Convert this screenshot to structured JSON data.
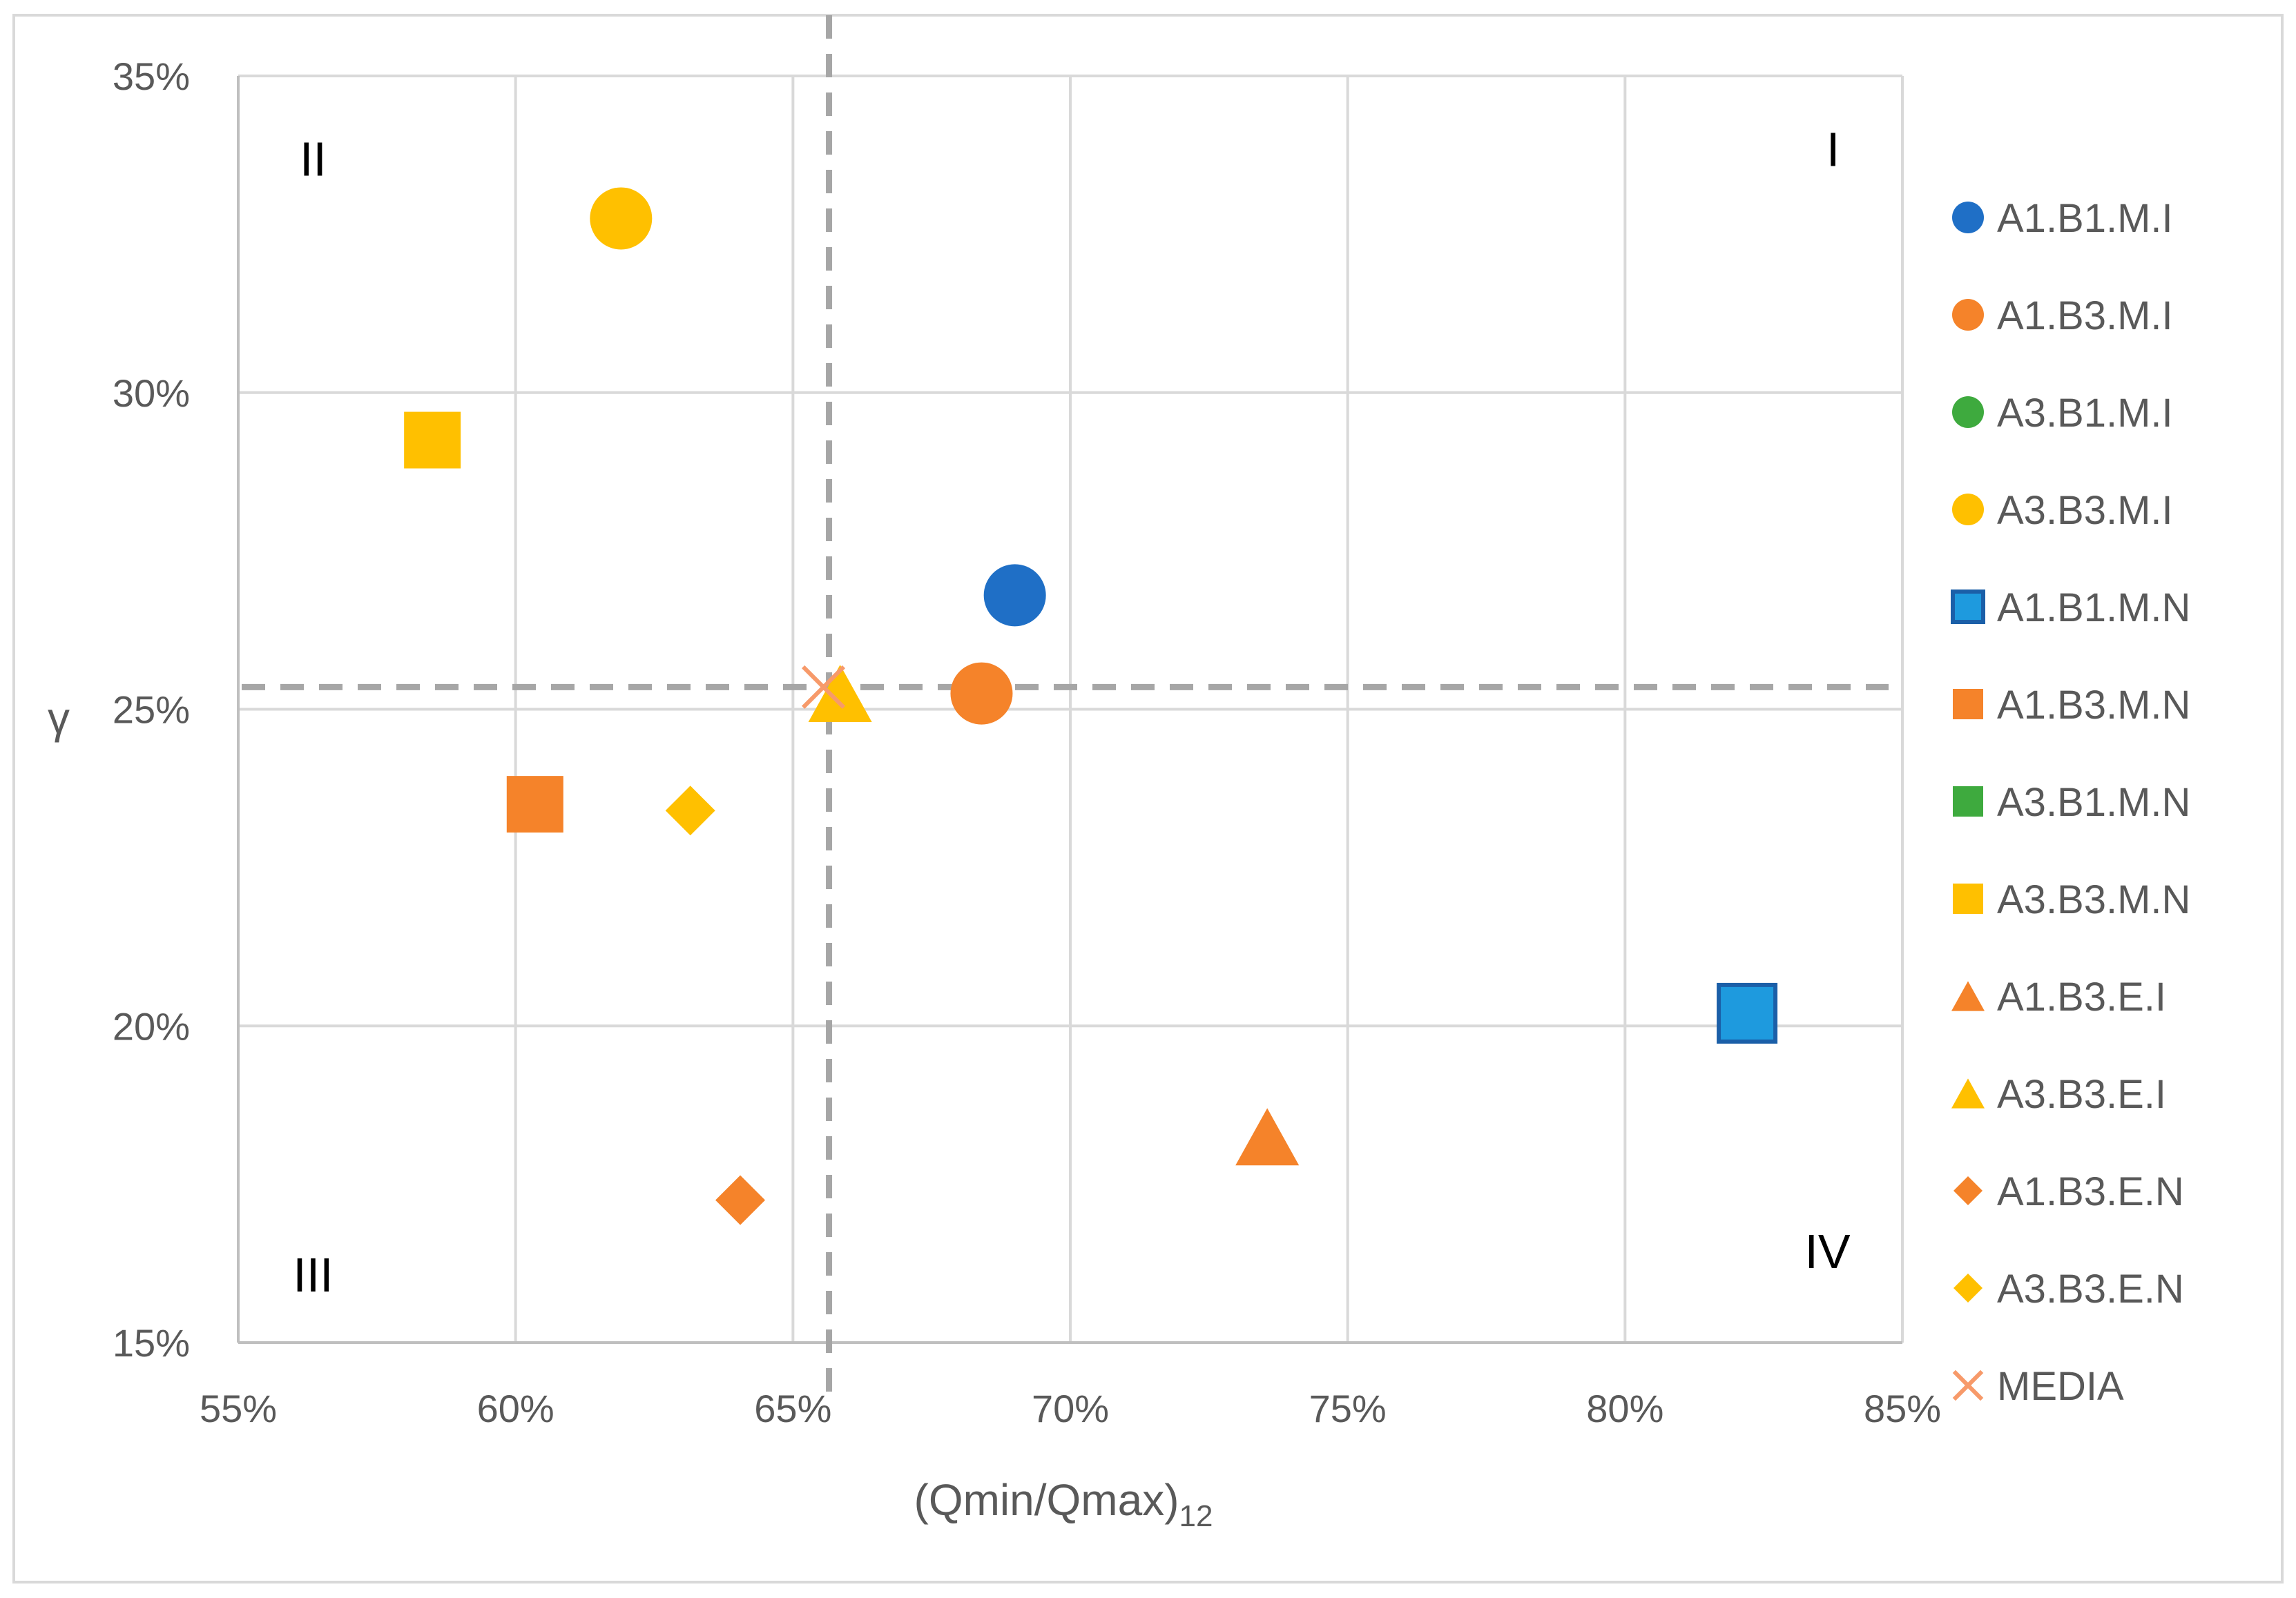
{
  "chart_data": {
    "type": "scatter",
    "title": "",
    "xlabel": "(Qmin/Qmax)",
    "xlabel_subscript": "12",
    "ylabel": "γ",
    "xlim": [
      0.55,
      0.85
    ],
    "ylim": [
      0.15,
      0.35
    ],
    "x_ticks": [
      {
        "value": 0.55,
        "label": "55%"
      },
      {
        "value": 0.6,
        "label": "60%"
      },
      {
        "value": 0.65,
        "label": "65%"
      },
      {
        "value": 0.7,
        "label": "70%"
      },
      {
        "value": 0.75,
        "label": "75%"
      },
      {
        "value": 0.8,
        "label": "80%"
      },
      {
        "value": 0.85,
        "label": "85%"
      }
    ],
    "y_ticks": [
      {
        "value": 0.15,
        "label": "15%"
      },
      {
        "value": 0.2,
        "label": "20%"
      },
      {
        "value": 0.25,
        "label": "25%"
      },
      {
        "value": 0.3,
        "label": "30%"
      },
      {
        "value": 0.35,
        "label": "35%"
      }
    ],
    "grid": true,
    "reference_lines": {
      "x": 0.6565,
      "y": 0.2535,
      "style": "dashed"
    },
    "quadrant_labels": [
      {
        "label": "I",
        "x": 0.8375,
        "y": 0.3385
      },
      {
        "label": "II",
        "x": 0.5635,
        "y": 0.337
      },
      {
        "label": "III",
        "x": 0.5635,
        "y": 0.1608
      },
      {
        "label": "IV",
        "x": 0.8365,
        "y": 0.1645
      }
    ],
    "legend_position": "right",
    "series": [
      {
        "name": "A1.B1.M.I",
        "marker": "circle",
        "color": "#1F6FC6",
        "points": [
          {
            "x": 0.69,
            "y": 0.268
          }
        ]
      },
      {
        "name": "A1.B3.M.I",
        "marker": "circle",
        "color": "#F5832A",
        "points": [
          {
            "x": 0.684,
            "y": 0.2525
          }
        ]
      },
      {
        "name": "A3.B1.M.I",
        "marker": "circle",
        "color": "#3EAA3E",
        "points": []
      },
      {
        "name": "A3.B3.M.I",
        "marker": "circle",
        "color": "#FFC000",
        "points": [
          {
            "x": 0.619,
            "y": 0.3275
          }
        ]
      },
      {
        "name": "A1.B1.M.N",
        "marker": "square",
        "color": "#1E9ADE",
        "stroke": "#1B5FA8",
        "points": [
          {
            "x": 0.822,
            "y": 0.202
          }
        ]
      },
      {
        "name": "A1.B3.M.N",
        "marker": "square",
        "color": "#F5832A",
        "points": [
          {
            "x": 0.6035,
            "y": 0.235
          }
        ]
      },
      {
        "name": "A3.B1.M.N",
        "marker": "square",
        "color": "#3EAA3E",
        "points": []
      },
      {
        "name": "A3.B3.M.N",
        "marker": "square",
        "color": "#FFC000",
        "points": [
          {
            "x": 0.585,
            "y": 0.2925
          }
        ]
      },
      {
        "name": "A1.B3.E.I",
        "marker": "triangle",
        "color": "#F5832A",
        "points": [
          {
            "x": 0.7355,
            "y": 0.1825
          }
        ]
      },
      {
        "name": "A3.B3.E.I",
        "marker": "triangle",
        "color": "#FFC000",
        "points": [
          {
            "x": 0.6585,
            "y": 0.2525
          }
        ]
      },
      {
        "name": "A1.B3.E.N",
        "marker": "diamond",
        "color": "#F5832A",
        "points": [
          {
            "x": 0.6405,
            "y": 0.1725
          }
        ]
      },
      {
        "name": "A3.B3.E.N",
        "marker": "diamond",
        "color": "#FFC000",
        "points": [
          {
            "x": 0.6315,
            "y": 0.234
          }
        ]
      },
      {
        "name": "MEDIA",
        "marker": "x",
        "color": "#F79A6A",
        "points": [
          {
            "x": 0.6555,
            "y": 0.2535
          }
        ]
      }
    ]
  }
}
